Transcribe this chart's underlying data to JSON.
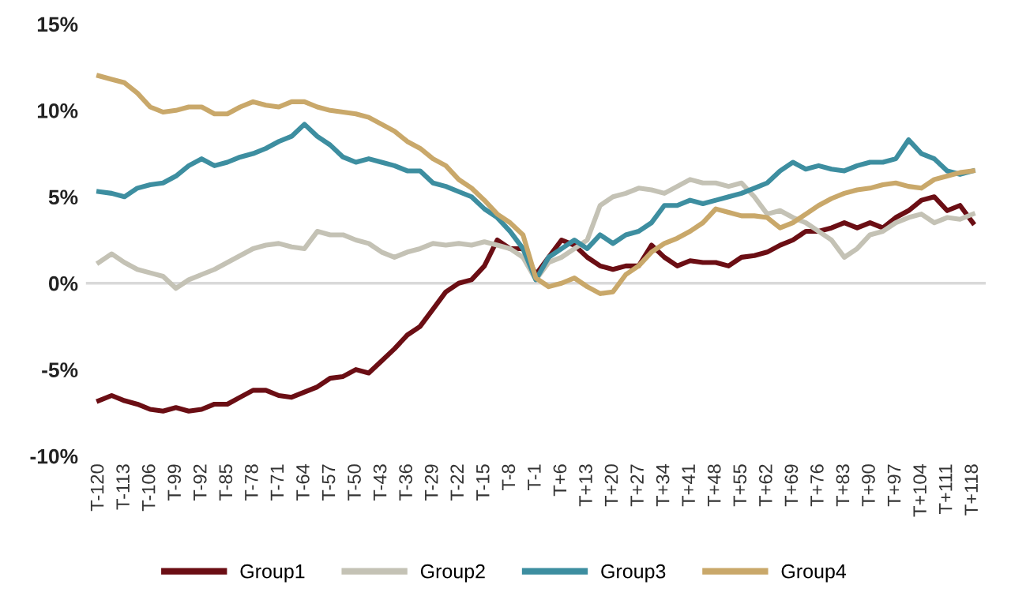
{
  "chart_data": {
    "type": "line",
    "legend": "bottom",
    "grid": false,
    "marker": "none",
    "line_style": "solid",
    "ylim": [
      -10,
      15
    ],
    "yticks": [
      {
        "value": -10,
        "label": "-10%"
      },
      {
        "value": -5,
        "label": "-5%"
      },
      {
        "value": 0,
        "label": "0%"
      },
      {
        "value": 5,
        "label": "5%"
      },
      {
        "value": 10,
        "label": "10%"
      },
      {
        "value": 15,
        "label": "15%"
      }
    ],
    "categories": [
      "T-120",
      null,
      "T-113",
      null,
      "T-106",
      null,
      "T-99",
      null,
      "T-92",
      null,
      "T-85",
      null,
      "T-78",
      null,
      "T-71",
      null,
      "T-64",
      null,
      "T-57",
      null,
      "T-50",
      null,
      "T-43",
      null,
      "T-36",
      null,
      "T-29",
      null,
      "T-22",
      null,
      "T-15",
      null,
      "T-8",
      null,
      "T-1",
      null,
      "T+6",
      null,
      "T+13",
      null,
      "T+20",
      null,
      "T+27",
      null,
      "T+34",
      null,
      "T+41",
      null,
      "T+48",
      null,
      "T+55",
      null,
      "T+62",
      null,
      "T+69",
      null,
      "T+76",
      null,
      "T+83",
      null,
      "T+90",
      null,
      "T+97",
      null,
      "T+104",
      null,
      "T+111",
      null,
      "T+118"
    ],
    "ref_lines": [
      {
        "axis": "y",
        "value": 0,
        "label": null,
        "color": "#d9d9d9"
      }
    ],
    "series": [
      {
        "name": "Group1",
        "color": "#6b0e14",
        "values": [
          -6.8,
          -6.5,
          -6.8,
          -7.0,
          -7.3,
          -7.4,
          -7.2,
          -7.4,
          -7.3,
          -7.0,
          -7.0,
          -6.6,
          -6.2,
          -6.2,
          -6.5,
          -6.6,
          -6.3,
          -6.0,
          -5.5,
          -5.4,
          -5.0,
          -5.2,
          -4.5,
          -3.8,
          -3.0,
          -2.5,
          -1.5,
          -0.5,
          0,
          0.2,
          1.0,
          2.5,
          2.0,
          2.0,
          0.5,
          1.5,
          2.5,
          2.2,
          1.5,
          1.0,
          0.8,
          1.0,
          1.0,
          2.2,
          1.5,
          1.0,
          1.3,
          1.2,
          1.2,
          1.0,
          1.5,
          1.6,
          1.8,
          2.2,
          2.5,
          3.0,
          3.0,
          3.2,
          3.5,
          3.2,
          3.5,
          3.2,
          3.8,
          4.2,
          4.8,
          5.0,
          4.2,
          4.5,
          3.5
        ]
      },
      {
        "name": "Group2",
        "color": "#c4c2b5",
        "values": [
          1.2,
          1.7,
          1.2,
          0.8,
          0.6,
          0.4,
          -0.3,
          0.2,
          0.5,
          0.8,
          1.2,
          1.6,
          2.0,
          2.2,
          2.3,
          2.1,
          2.0,
          3.0,
          2.8,
          2.8,
          2.5,
          2.3,
          1.8,
          1.5,
          1.8,
          2.0,
          2.3,
          2.2,
          2.3,
          2.2,
          2.4,
          2.2,
          2.0,
          1.5,
          0.2,
          1.2,
          1.5,
          2.0,
          2.5,
          4.5,
          5.0,
          5.2,
          5.5,
          5.4,
          5.2,
          5.6,
          6.0,
          5.8,
          5.8,
          5.6,
          5.8,
          5.0,
          4.0,
          4.2,
          3.8,
          3.5,
          3.0,
          2.5,
          1.5,
          2.0,
          2.8,
          3.0,
          3.5,
          3.8,
          4.0,
          3.5,
          3.8,
          3.7,
          4.0
        ]
      },
      {
        "name": "Group3",
        "color": "#3d8ea0",
        "values": [
          5.3,
          5.2,
          5.0,
          5.5,
          5.7,
          5.8,
          6.2,
          6.8,
          7.2,
          6.8,
          7.0,
          7.3,
          7.5,
          7.8,
          8.2,
          8.5,
          9.2,
          8.5,
          8.0,
          7.3,
          7.0,
          7.2,
          7.0,
          6.8,
          6.5,
          6.5,
          5.8,
          5.6,
          5.3,
          5.0,
          4.3,
          3.8,
          3.0,
          2.0,
          0.2,
          1.5,
          2.0,
          2.5,
          2.0,
          2.8,
          2.3,
          2.8,
          3.0,
          3.5,
          4.5,
          4.5,
          4.8,
          4.6,
          4.8,
          5.0,
          5.2,
          5.5,
          5.8,
          6.5,
          7.0,
          6.6,
          6.8,
          6.6,
          6.5,
          6.8,
          7.0,
          7.0,
          7.2,
          8.3,
          7.5,
          7.2,
          6.5,
          6.3,
          6.5
        ]
      },
      {
        "name": "Group4",
        "color": "#c9a86a",
        "values": [
          12.0,
          11.8,
          11.6,
          11.0,
          10.2,
          9.9,
          10.0,
          10.2,
          10.2,
          9.8,
          9.8,
          10.2,
          10.5,
          10.3,
          10.2,
          10.5,
          10.5,
          10.2,
          10.0,
          9.9,
          9.8,
          9.6,
          9.2,
          8.8,
          8.2,
          7.8,
          7.2,
          6.8,
          6.0,
          5.5,
          4.8,
          4.0,
          3.5,
          2.8,
          0.3,
          -0.2,
          0,
          0.3,
          -0.2,
          -0.6,
          -0.5,
          0.5,
          1.0,
          1.8,
          2.3,
          2.6,
          3.0,
          3.5,
          4.3,
          4.1,
          3.9,
          3.9,
          3.8,
          3.2,
          3.5,
          4.0,
          4.5,
          4.9,
          5.2,
          5.4,
          5.5,
          5.7,
          5.8,
          5.6,
          5.5,
          6.0,
          6.2,
          6.4,
          6.5
        ]
      }
    ]
  }
}
